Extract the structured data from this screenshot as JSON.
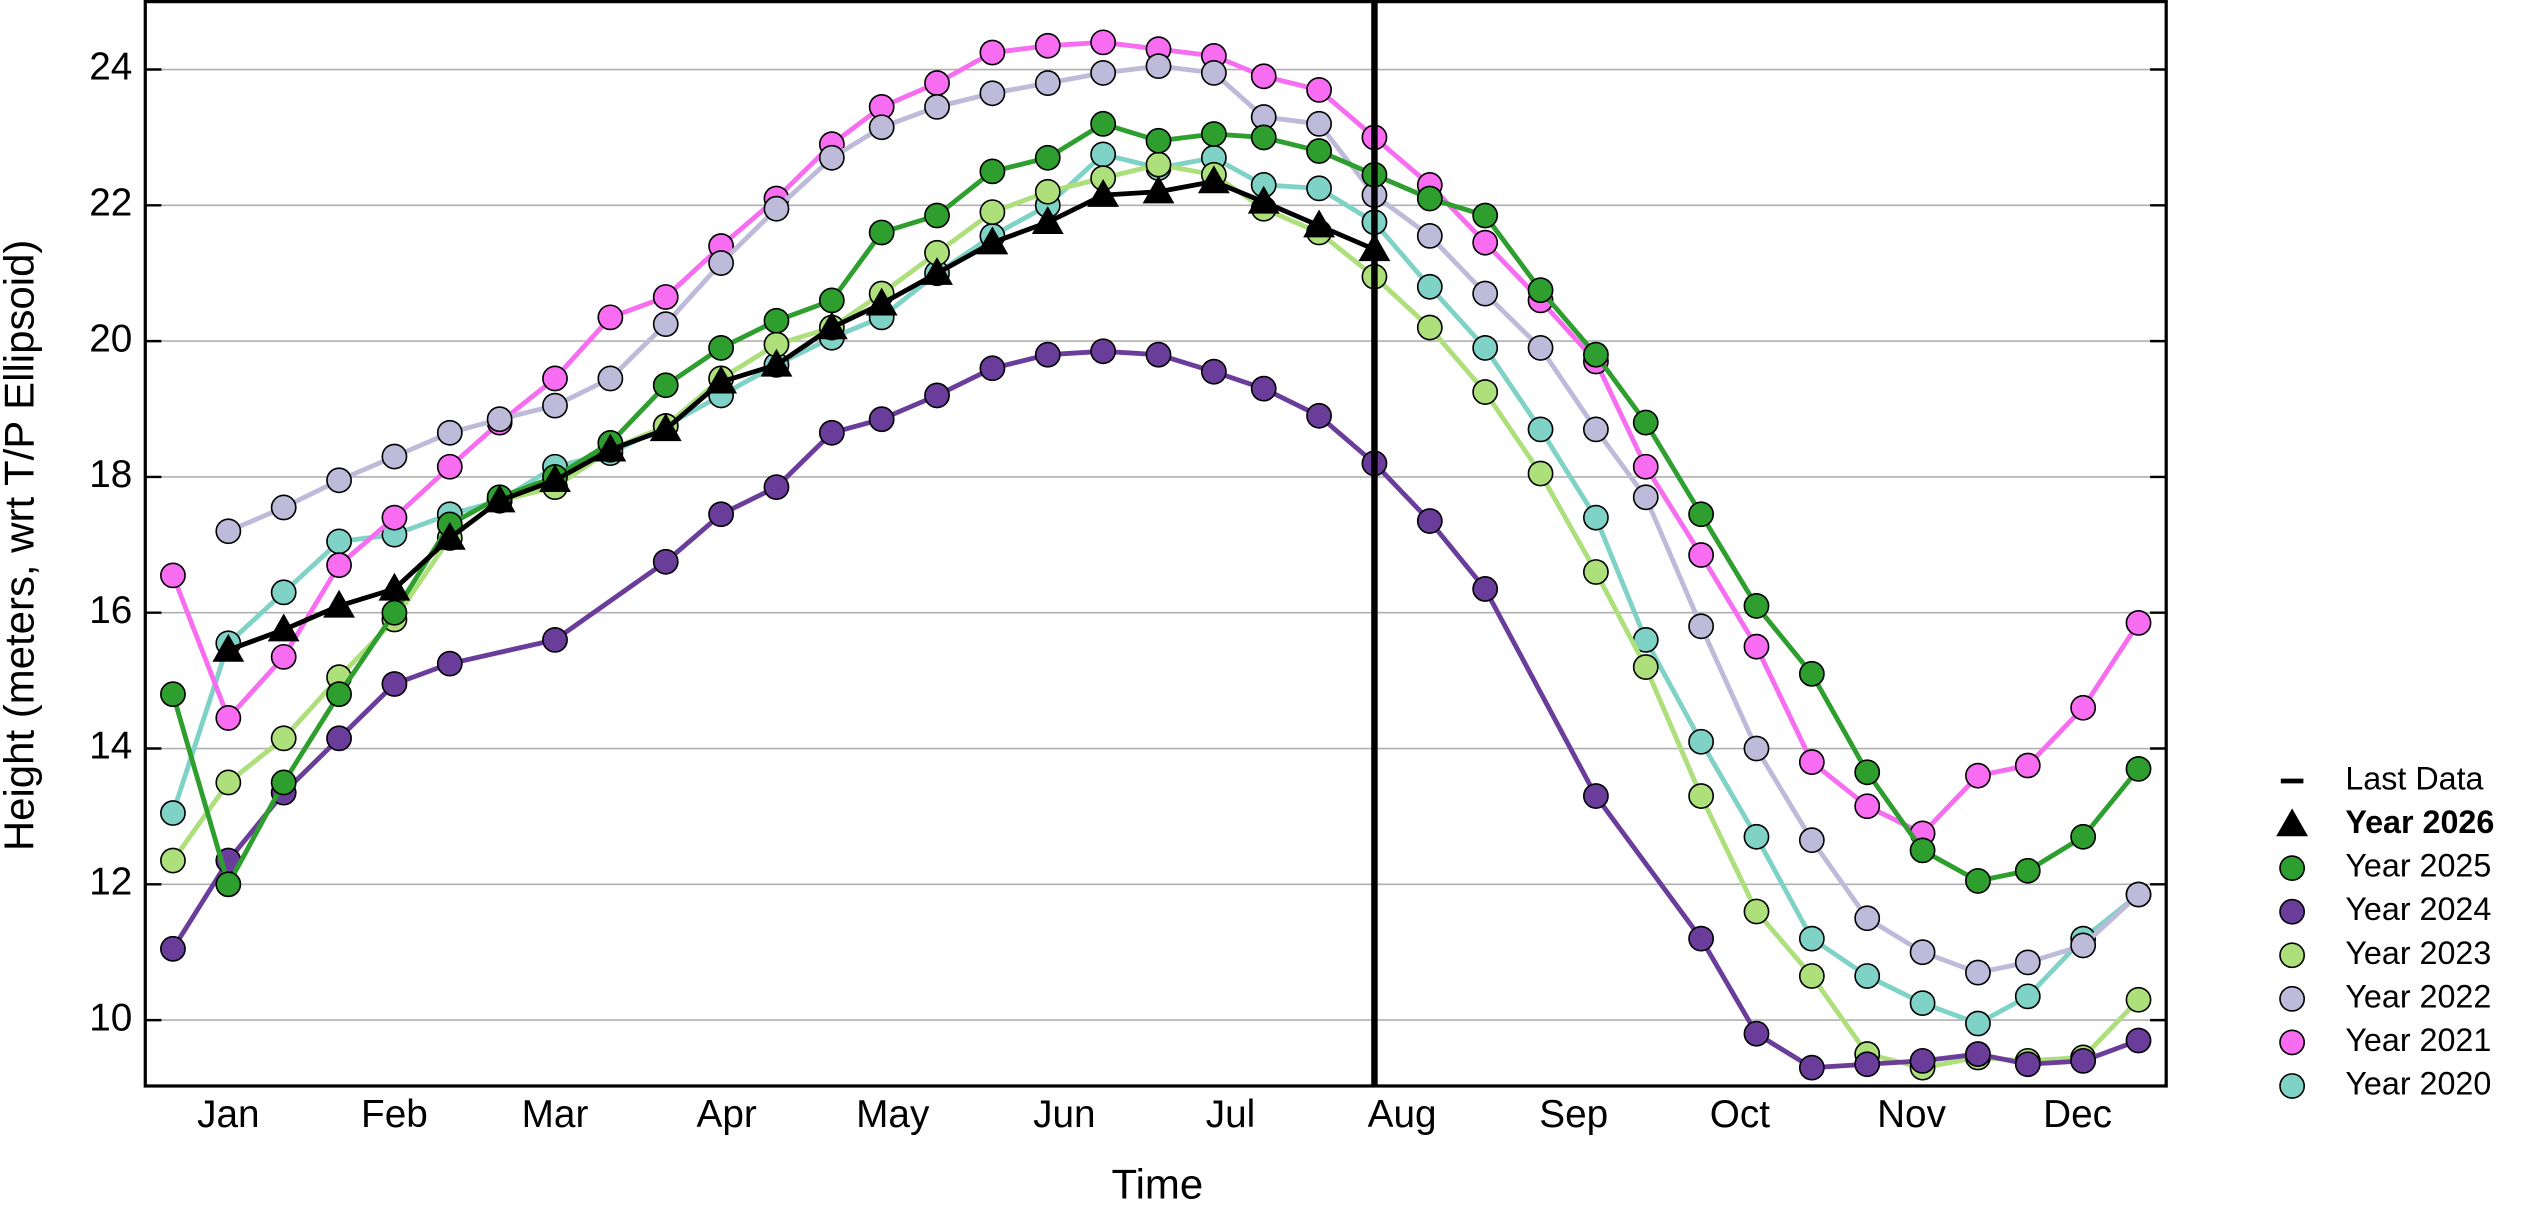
{
  "chart_data": {
    "type": "line",
    "xlabel": "Time",
    "ylabel": "Height (meters, wrt T/P Ellipsoid)",
    "xlim": [
      0,
      365
    ],
    "ylim": [
      9.03,
      25
    ],
    "xticks": [
      {
        "value": 15,
        "label": "Jan"
      },
      {
        "value": 45,
        "label": "Feb"
      },
      {
        "value": 74,
        "label": "Mar"
      },
      {
        "value": 105,
        "label": "Apr"
      },
      {
        "value": 135,
        "label": "May"
      },
      {
        "value": 166,
        "label": "Jun"
      },
      {
        "value": 196,
        "label": "Jul"
      },
      {
        "value": 227,
        "label": "Aug"
      },
      {
        "value": 258,
        "label": "Sep"
      },
      {
        "value": 288,
        "label": "Oct"
      },
      {
        "value": 319,
        "label": "Nov"
      },
      {
        "value": 349,
        "label": "Dec"
      }
    ],
    "yticks": [
      10,
      12,
      14,
      16,
      18,
      20,
      22,
      24
    ],
    "grid": true,
    "legend": "right",
    "last_data": {
      "name": "Last Data",
      "x": 222,
      "color": "#000000"
    },
    "x": [
      5,
      15,
      25,
      35,
      45,
      55,
      64,
      74,
      84,
      94,
      104,
      114,
      124,
      133,
      143,
      153,
      163,
      173,
      183,
      193,
      202,
      212,
      222,
      232,
      242,
      252,
      262,
      271,
      281,
      291,
      301,
      311,
      321,
      331,
      340,
      350,
      360
    ],
    "series": [
      {
        "name": "Year 2026",
        "color": "#000000",
        "marker": "triangle",
        "bold": true,
        "values": [
          null,
          15.45,
          15.75,
          16.1,
          16.35,
          17.1,
          17.65,
          17.95,
          18.4,
          18.7,
          19.4,
          19.65,
          20.2,
          20.55,
          21.0,
          21.45,
          21.75,
          22.15,
          22.2,
          22.35,
          22.05,
          21.7,
          21.35,
          null,
          null,
          null,
          null,
          null,
          null,
          null,
          null,
          null,
          null,
          null,
          null,
          null,
          null
        ]
      },
      {
        "name": "Year 2025",
        "color": "#2e9e2e",
        "marker": "circle",
        "values": [
          14.8,
          12.0,
          13.5,
          14.8,
          16.0,
          17.3,
          17.7,
          18.0,
          18.5,
          19.35,
          19.9,
          20.3,
          20.6,
          21.6,
          21.85,
          22.5,
          22.7,
          23.2,
          22.95,
          23.05,
          23.0,
          22.8,
          22.45,
          22.1,
          21.85,
          20.75,
          19.8,
          18.8,
          17.45,
          16.1,
          15.1,
          13.65,
          12.5,
          12.05,
          12.2,
          12.7,
          13.7
        ]
      },
      {
        "name": "Year 2024",
        "color": "#6a3d9a",
        "marker": "circle",
        "x": [
          5,
          15,
          25,
          35,
          45,
          55,
          74,
          94,
          104,
          114,
          124,
          133,
          143,
          153,
          163,
          173,
          183,
          193,
          202,
          212,
          222,
          232,
          242,
          262,
          281,
          291,
          301,
          311,
          321,
          331,
          340,
          350,
          360
        ],
        "values": [
          11.05,
          12.35,
          13.35,
          14.15,
          14.95,
          15.25,
          15.6,
          16.75,
          17.45,
          17.85,
          18.65,
          18.85,
          19.2,
          19.6,
          19.8,
          19.85,
          19.8,
          19.55,
          19.3,
          18.9,
          18.2,
          17.35,
          16.35,
          13.3,
          11.2,
          9.8,
          9.3,
          9.35,
          9.4,
          9.5,
          9.35,
          9.4,
          9.7
        ]
      },
      {
        "name": "Year 2023",
        "color": "#addf7a",
        "marker": "circle",
        "values": [
          12.35,
          13.5,
          14.15,
          15.05,
          15.9,
          17.1,
          17.65,
          17.85,
          18.4,
          18.75,
          19.45,
          19.95,
          20.2,
          20.7,
          21.3,
          21.9,
          22.2,
          22.4,
          22.6,
          22.45,
          21.95,
          21.6,
          20.95,
          20.2,
          19.25,
          18.05,
          16.6,
          15.2,
          13.3,
          11.6,
          10.65,
          9.5,
          9.3,
          9.45,
          9.4,
          9.45,
          10.3
        ]
      },
      {
        "name": "Year 2022",
        "color": "#bdbbd9",
        "marker": "circle",
        "values": [
          null,
          17.2,
          17.55,
          17.95,
          18.3,
          18.65,
          18.85,
          19.05,
          19.45,
          20.25,
          21.15,
          21.95,
          22.7,
          23.15,
          23.45,
          23.65,
          23.8,
          23.95,
          24.05,
          23.95,
          23.3,
          23.2,
          22.15,
          21.55,
          20.7,
          19.9,
          18.7,
          17.7,
          15.8,
          14.0,
          12.65,
          11.5,
          11.0,
          10.7,
          10.85,
          11.1,
          11.85
        ]
      },
      {
        "name": "Year 2021",
        "color": "#f76cf0",
        "marker": "circle",
        "values": [
          16.55,
          14.45,
          15.35,
          16.7,
          17.4,
          18.15,
          18.8,
          19.45,
          20.35,
          20.65,
          21.4,
          22.1,
          22.9,
          23.45,
          23.8,
          24.25,
          24.35,
          24.4,
          24.3,
          24.2,
          23.9,
          23.7,
          23.0,
          22.3,
          21.45,
          20.6,
          19.7,
          18.15,
          16.85,
          15.5,
          13.8,
          13.15,
          12.75,
          13.6,
          13.75,
          14.6,
          15.85
        ]
      },
      {
        "name": "Year 2020",
        "color": "#7fd2c6",
        "marker": "circle",
        "values": [
          13.05,
          15.55,
          16.3,
          17.05,
          17.15,
          17.45,
          17.65,
          18.15,
          18.35,
          18.75,
          19.2,
          19.65,
          20.05,
          20.35,
          21.0,
          21.55,
          22.0,
          22.75,
          22.55,
          22.7,
          22.3,
          22.25,
          21.75,
          20.8,
          19.9,
          18.7,
          17.4,
          15.6,
          14.1,
          12.7,
          11.2,
          10.65,
          10.25,
          9.95,
          10.35,
          11.2,
          11.85
        ]
      }
    ]
  }
}
